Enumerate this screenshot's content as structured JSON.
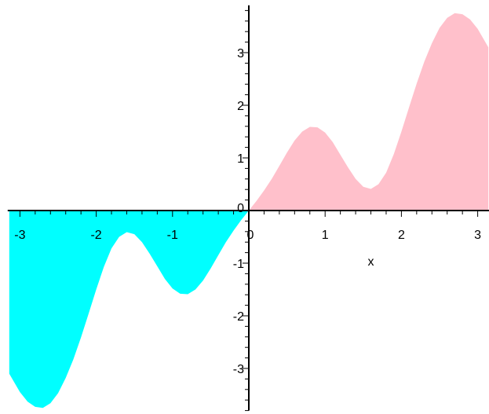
{
  "chart_data": {
    "type": "area",
    "title": "",
    "xlabel": "x",
    "ylabel": "",
    "xlim": [
      -3.14,
      3.14
    ],
    "ylim": [
      -3.8,
      3.9
    ],
    "grid": false,
    "x_ticks": [
      -3,
      -2,
      -1,
      0,
      1,
      2,
      3
    ],
    "x_tick_labels": [
      "-3",
      "-2",
      "-1",
      "0",
      "1",
      "2",
      "3"
    ],
    "y_ticks": [
      -3,
      -2,
      -1,
      1,
      2,
      3
    ],
    "y_tick_labels": [
      "-3",
      "-2",
      "-1",
      "1",
      "2",
      "3"
    ],
    "origin_label": "0",
    "series": [
      {
        "color": "#00ffff",
        "x": [
          -3.14,
          -3.0,
          -2.9,
          -2.8,
          -2.7,
          -2.6,
          -2.5,
          -2.4,
          -2.3,
          -2.2,
          -2.1,
          -2.0,
          -1.9,
          -1.8,
          -1.7,
          -1.6,
          -1.5,
          -1.4,
          -1.3,
          -1.2,
          -1.1,
          -1.0,
          -0.9,
          -0.8,
          -0.7,
          -0.6,
          -0.5,
          -0.4,
          -0.3,
          -0.2,
          -0.1,
          0.0
        ],
        "y": [
          -3.1,
          -3.45,
          -3.63,
          -3.73,
          -3.75,
          -3.66,
          -3.47,
          -3.18,
          -2.83,
          -2.41,
          -1.96,
          -1.5,
          -1.07,
          -0.72,
          -0.5,
          -0.41,
          -0.45,
          -0.6,
          -0.82,
          -1.06,
          -1.3,
          -1.48,
          -1.58,
          -1.59,
          -1.5,
          -1.33,
          -1.1,
          -0.85,
          -0.6,
          -0.38,
          -0.18,
          0.0
        ]
      },
      {
        "color": "#ffc0cb",
        "x": [
          0.0,
          0.1,
          0.2,
          0.3,
          0.4,
          0.5,
          0.6,
          0.7,
          0.8,
          0.9,
          1.0,
          1.1,
          1.2,
          1.3,
          1.4,
          1.5,
          1.6,
          1.7,
          1.8,
          1.9,
          2.0,
          2.1,
          2.2,
          2.3,
          2.4,
          2.5,
          2.6,
          2.7,
          2.8,
          2.9,
          3.0,
          3.14
        ],
        "y": [
          0.0,
          0.18,
          0.38,
          0.6,
          0.85,
          1.1,
          1.33,
          1.5,
          1.59,
          1.58,
          1.48,
          1.3,
          1.06,
          0.82,
          0.6,
          0.45,
          0.41,
          0.5,
          0.72,
          1.07,
          1.5,
          1.96,
          2.41,
          2.83,
          3.18,
          3.47,
          3.66,
          3.75,
          3.73,
          3.63,
          3.45,
          3.1
        ]
      }
    ]
  }
}
